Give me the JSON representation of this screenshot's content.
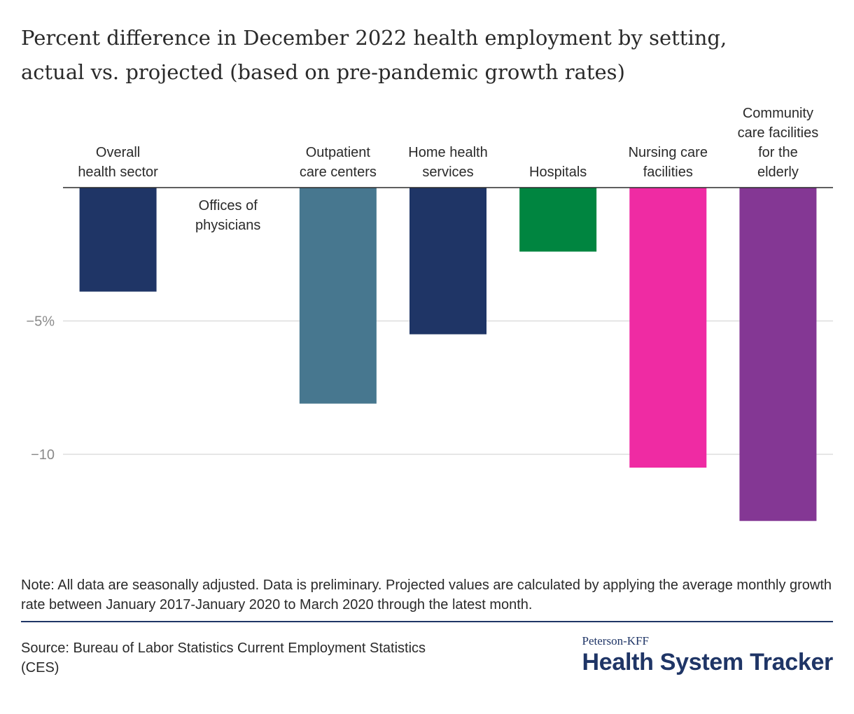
{
  "title_lines": [
    "Percent difference in December 2022 health employment by setting,",
    "actual vs. projected (based on pre-pandemic growth rates)"
  ],
  "chart_data": {
    "type": "bar",
    "title": "Percent difference in December 2022 health employment by setting, actual vs. projected (based on pre-pandemic growth rates)",
    "categories": [
      "Overall health sector",
      "Offices of physicians",
      "Outpatient care centers",
      "Home health services",
      "Hospitals",
      "Nursing care facilities",
      "Community care facilities for the elderly"
    ],
    "category_label_lines": [
      [
        "Overall",
        "health sector"
      ],
      [
        "Offices of",
        "physicians"
      ],
      [
        "Outpatient",
        "care centers"
      ],
      [
        "Home health",
        "services"
      ],
      [
        "Hospitals"
      ],
      [
        "Nursing care",
        "facilities"
      ],
      [
        "Community",
        "care facilities",
        "for the",
        "elderly"
      ]
    ],
    "values": [
      -3.9,
      0.0,
      -8.1,
      -5.5,
      -2.4,
      -10.5,
      -12.5
    ],
    "colors": [
      "#1f3566",
      "#1f3566",
      "#47778f",
      "#1f3566",
      "#008540",
      "#ef2ba3",
      "#843794"
    ],
    "ylim": [
      -13.5,
      0
    ],
    "yticks": [
      -5,
      -10
    ],
    "ytick_labels": [
      "−5%",
      "−10"
    ],
    "grid": true,
    "xlabel": "",
    "ylabel": ""
  },
  "note": "Note: All data are seasonally adjusted. Data is preliminary. Projected values are calculated by applying the average monthly growth rate between January 2017-January 2020 to March 2020 through the latest month.",
  "source": "Source: Bureau of Labor Statistics Current Employment Statistics (CES)",
  "logo": {
    "small": "Peterson-KFF",
    "big": "Health System Tracker"
  }
}
